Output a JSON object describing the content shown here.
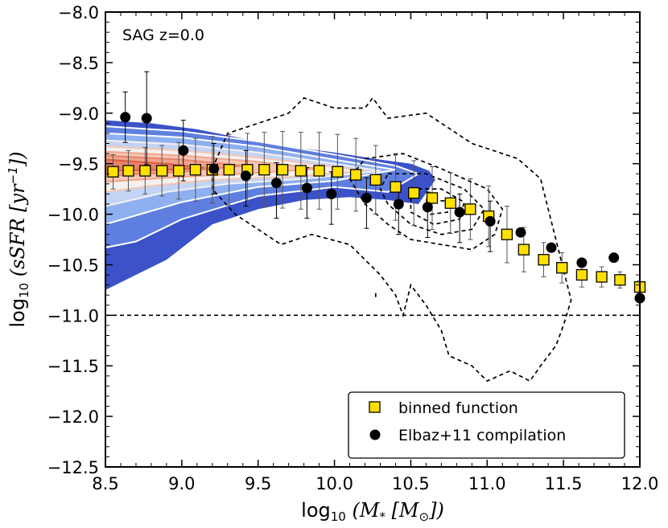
{
  "chart_data": {
    "type": "scatter",
    "title": "",
    "annotation": "SAG z=0.0",
    "xlabel_parts": {
      "pre": "log",
      "sub": "10",
      "post": " (M",
      "sub2": "*",
      "post2": " [M",
      "sub3": "⊙",
      "post3": "])"
    },
    "ylabel_parts": {
      "pre": "log",
      "sub": "10",
      "post": " (sSFR [yr",
      "sup": "−1",
      "post2": "])"
    },
    "xlim": [
      8.5,
      12.0
    ],
    "ylim": [
      -12.5,
      -8.0
    ],
    "x_ticks": [
      "8.5",
      "9.0",
      "9.5",
      "10.0",
      "10.5",
      "11.0",
      "11.5",
      "12.0"
    ],
    "y_ticks": [
      "−12.5",
      "−12.0",
      "−11.5",
      "−11.0",
      "−10.5",
      "−10.0",
      "−9.5",
      "−9.0",
      "−8.5",
      "−8.0"
    ],
    "reference_line_y": -11.0,
    "grid": false,
    "legend_position": "lower-right",
    "series": [
      {
        "name": "binned function",
        "marker": "square",
        "color": "#FFE000",
        "x": [
          8.55,
          8.65,
          8.76,
          8.87,
          8.98,
          9.09,
          9.2,
          9.31,
          9.43,
          9.54,
          9.66,
          9.78,
          9.9,
          10.02,
          10.14,
          10.27,
          10.4,
          10.52,
          10.64,
          10.76,
          10.89,
          11.01,
          11.13,
          11.24,
          11.37,
          11.49,
          11.62,
          11.75,
          11.87,
          12.0
        ],
        "y": [
          -9.58,
          -9.57,
          -9.57,
          -9.57,
          -9.57,
          -9.56,
          -9.56,
          -9.56,
          -9.56,
          -9.56,
          -9.56,
          -9.57,
          -9.57,
          -9.58,
          -9.61,
          -9.66,
          -9.73,
          -9.79,
          -9.84,
          -9.89,
          -9.95,
          -10.02,
          -10.2,
          -10.35,
          -10.45,
          -10.53,
          -10.6,
          -10.62,
          -10.65,
          -10.72
        ],
        "yerr": [
          0.17,
          0.2,
          0.23,
          0.25,
          0.28,
          0.31,
          0.33,
          0.35,
          0.36,
          0.37,
          0.38,
          0.38,
          0.38,
          0.37,
          0.36,
          0.34,
          0.33,
          0.32,
          0.31,
          0.3,
          0.3,
          0.3,
          0.28,
          0.22,
          0.17,
          0.15,
          0.12,
          0.1,
          0.08,
          0.06
        ]
      },
      {
        "name": "Elbaz+11 compilation",
        "marker": "circle",
        "color": "#000000",
        "x": [
          8.63,
          8.77,
          9.01,
          9.21,
          9.42,
          9.62,
          9.82,
          9.98,
          10.21,
          10.42,
          10.61,
          10.82,
          11.02,
          11.22,
          11.42,
          11.62,
          11.83,
          12.0
        ],
        "y": [
          -9.04,
          -9.05,
          -9.37,
          -9.55,
          -9.62,
          -9.69,
          -9.74,
          -9.8,
          -9.84,
          -9.9,
          -9.93,
          -9.98,
          -10.07,
          -10.18,
          -10.33,
          -10.48,
          -10.43,
          -10.83
        ],
        "yerr_hi": [
          0.25,
          0.46,
          0.3,
          0.25,
          0.25,
          0.2,
          0.2,
          0.22,
          0.2,
          0.2,
          0.15,
          0.18,
          0.2,
          0.0,
          0.0,
          0.0,
          0.0,
          0.0
        ],
        "yerr_lo": [
          0.25,
          0.46,
          0.3,
          0.25,
          0.3,
          0.35,
          0.3,
          0.3,
          0.3,
          0.3,
          0.3,
          0.3,
          0.3,
          0.0,
          0.0,
          0.0,
          0.0,
          0.0
        ]
      }
    ],
    "density_model": {
      "fill_band_upper": [
        [
          8.5,
          -9.07
        ],
        [
          8.8,
          -9.1
        ],
        [
          9.1,
          -9.16
        ],
        [
          9.4,
          -9.25
        ],
        [
          9.7,
          -9.33
        ],
        [
          10.0,
          -9.39
        ],
        [
          10.3,
          -9.46
        ],
        [
          10.5,
          -9.5
        ],
        [
          10.62,
          -9.57
        ],
        [
          10.66,
          -9.66
        ]
      ],
      "fill_band_lower": [
        [
          10.66,
          -9.66
        ],
        [
          10.55,
          -9.9
        ],
        [
          10.35,
          -9.86
        ],
        [
          10.1,
          -9.83
        ],
        [
          9.8,
          -9.86
        ],
        [
          9.5,
          -9.95
        ],
        [
          9.2,
          -10.1
        ],
        [
          8.9,
          -10.45
        ],
        [
          8.7,
          -10.6
        ],
        [
          8.5,
          -10.75
        ]
      ],
      "contours": [
        {
          "color": "#ffffff",
          "upper": [
            [
              8.5,
              -9.13
            ],
            [
              9.0,
              -9.18
            ],
            [
              9.5,
              -9.28
            ],
            [
              10.0,
              -9.41
            ],
            [
              10.4,
              -9.52
            ],
            [
              10.55,
              -9.6
            ]
          ],
          "lower": [
            [
              10.55,
              -9.6
            ],
            [
              10.35,
              -9.78
            ],
            [
              10.0,
              -9.73
            ],
            [
              9.5,
              -9.82
            ],
            [
              9.0,
              -10.05
            ],
            [
              8.7,
              -10.27
            ],
            [
              8.5,
              -10.33
            ]
          ]
        },
        {
          "color": "#ffffff",
          "upper": [
            [
              8.5,
              -9.2
            ],
            [
              9.0,
              -9.24
            ],
            [
              9.5,
              -9.33
            ],
            [
              10.0,
              -9.46
            ],
            [
              10.4,
              -9.56
            ]
          ],
          "lower": [
            [
              10.4,
              -9.56
            ],
            [
              10.0,
              -9.67
            ],
            [
              9.5,
              -9.73
            ],
            [
              9.0,
              -9.88
            ],
            [
              8.5,
              -10.1
            ]
          ]
        },
        {
          "color": "#f4f1f0",
          "upper": [
            [
              8.5,
              -9.27
            ],
            [
              9.0,
              -9.31
            ],
            [
              9.5,
              -9.39
            ],
            [
              10.0,
              -9.5
            ],
            [
              10.3,
              -9.57
            ]
          ],
          "lower": [
            [
              10.3,
              -9.57
            ],
            [
              9.8,
              -9.65
            ],
            [
              9.3,
              -9.7
            ],
            [
              8.9,
              -9.78
            ],
            [
              8.5,
              -9.92
            ]
          ]
        },
        {
          "color": "#f5c7b4",
          "upper": [
            [
              8.5,
              -9.33
            ],
            [
              9.0,
              -9.37
            ],
            [
              9.5,
              -9.44
            ],
            [
              10.0,
              -9.53
            ],
            [
              10.2,
              -9.57
            ]
          ],
          "lower": [
            [
              10.2,
              -9.57
            ],
            [
              9.7,
              -9.63
            ],
            [
              9.2,
              -9.66
            ],
            [
              8.8,
              -9.72
            ],
            [
              8.5,
              -9.78
            ]
          ]
        },
        {
          "color": "#f0a58b",
          "upper": [
            [
              8.5,
              -9.38
            ],
            [
              9.0,
              -9.42
            ],
            [
              9.5,
              -9.48
            ],
            [
              9.9,
              -9.55
            ]
          ],
          "lower": [
            [
              9.9,
              -9.55
            ],
            [
              9.4,
              -9.6
            ],
            [
              9.0,
              -9.63
            ],
            [
              8.5,
              -9.68
            ]
          ]
        },
        {
          "color": "#e8826b",
          "upper": [
            [
              8.5,
              -9.42
            ],
            [
              9.0,
              -9.46
            ],
            [
              9.4,
              -9.52
            ]
          ],
          "lower": [
            [
              9.4,
              -9.52
            ],
            [
              9.0,
              -9.58
            ],
            [
              8.5,
              -9.62
            ]
          ]
        },
        {
          "color": "#d8603f",
          "upper": [
            [
              8.5,
              -9.46
            ],
            [
              8.9,
              -9.5
            ],
            [
              9.15,
              -9.54
            ]
          ],
          "lower": [
            [
              9.15,
              -9.54
            ],
            [
              8.9,
              -9.56
            ],
            [
              8.5,
              -9.57
            ]
          ]
        }
      ],
      "band_colors": [
        "#3b52c9",
        "#5f7fe0",
        "#8fb0f0",
        "#c3d4f4",
        "#f4f1f0",
        "#f5c7b4",
        "#f0a58b",
        "#e8826b",
        "#d8603f"
      ]
    },
    "observed_contours": [
      {
        "points": [
          [
            9.2,
            -9.55
          ],
          [
            9.3,
            -9.2
          ],
          [
            9.5,
            -9.1
          ],
          [
            9.7,
            -9.0
          ],
          [
            9.8,
            -8.85
          ],
          [
            10.0,
            -8.95
          ],
          [
            10.2,
            -8.95
          ],
          [
            10.25,
            -8.85
          ],
          [
            10.35,
            -9.05
          ],
          [
            10.6,
            -9.0
          ],
          [
            10.75,
            -9.15
          ],
          [
            10.9,
            -9.3
          ],
          [
            11.2,
            -9.45
          ],
          [
            11.35,
            -9.65
          ],
          [
            11.4,
            -9.95
          ],
          [
            11.45,
            -10.25
          ],
          [
            11.5,
            -10.55
          ],
          [
            11.55,
            -10.85
          ],
          [
            11.5,
            -11.1
          ],
          [
            11.45,
            -11.3
          ],
          [
            11.35,
            -11.5
          ],
          [
            11.28,
            -11.65
          ],
          [
            11.15,
            -11.55
          ],
          [
            11.0,
            -11.65
          ],
          [
            10.9,
            -11.5
          ],
          [
            10.75,
            -11.4
          ],
          [
            10.7,
            -11.15
          ],
          [
            10.6,
            -10.9
          ],
          [
            10.5,
            -10.7
          ],
          [
            10.45,
            -11.0
          ],
          [
            10.4,
            -10.8
          ],
          [
            10.3,
            -10.6
          ],
          [
            10.1,
            -10.3
          ],
          [
            9.85,
            -10.2
          ],
          [
            9.65,
            -10.3
          ],
          [
            9.5,
            -10.15
          ],
          [
            9.35,
            -10.0
          ],
          [
            9.2,
            -9.75
          ],
          [
            9.2,
            -9.55
          ]
        ]
      },
      {
        "points": [
          [
            10.2,
            -9.45
          ],
          [
            10.45,
            -9.4
          ],
          [
            10.7,
            -9.55
          ],
          [
            11.0,
            -9.75
          ],
          [
            11.1,
            -9.95
          ],
          [
            11.05,
            -10.2
          ],
          [
            10.9,
            -10.35
          ],
          [
            10.7,
            -10.3
          ],
          [
            10.5,
            -10.25
          ],
          [
            10.35,
            -10.1
          ],
          [
            10.2,
            -9.9
          ],
          [
            10.1,
            -9.65
          ],
          [
            10.2,
            -9.45
          ]
        ]
      },
      {
        "points": [
          [
            10.35,
            -9.6
          ],
          [
            10.6,
            -9.6
          ],
          [
            10.85,
            -9.75
          ],
          [
            10.98,
            -9.95
          ],
          [
            10.9,
            -10.15
          ],
          [
            10.7,
            -10.2
          ],
          [
            10.5,
            -10.1
          ],
          [
            10.35,
            -9.9
          ],
          [
            10.3,
            -9.75
          ],
          [
            10.35,
            -9.6
          ]
        ]
      },
      {
        "points": [
          [
            10.5,
            -9.75
          ],
          [
            10.7,
            -9.75
          ],
          [
            10.85,
            -9.88
          ],
          [
            10.82,
            -10.05
          ],
          [
            10.65,
            -10.1
          ],
          [
            10.5,
            -9.98
          ],
          [
            10.5,
            -9.75
          ]
        ]
      },
      {
        "points": [
          [
            10.6,
            -9.85
          ],
          [
            10.72,
            -9.87
          ],
          [
            10.74,
            -9.98
          ],
          [
            10.63,
            -10.0
          ],
          [
            10.6,
            -9.85
          ]
        ]
      },
      {
        "points": [
          [
            10.27,
            -10.78
          ],
          [
            10.27,
            -10.85
          ]
        ]
      }
    ]
  },
  "legend": {
    "items": [
      {
        "label": "binned function"
      },
      {
        "label": "Elbaz+11 compilation"
      }
    ]
  }
}
